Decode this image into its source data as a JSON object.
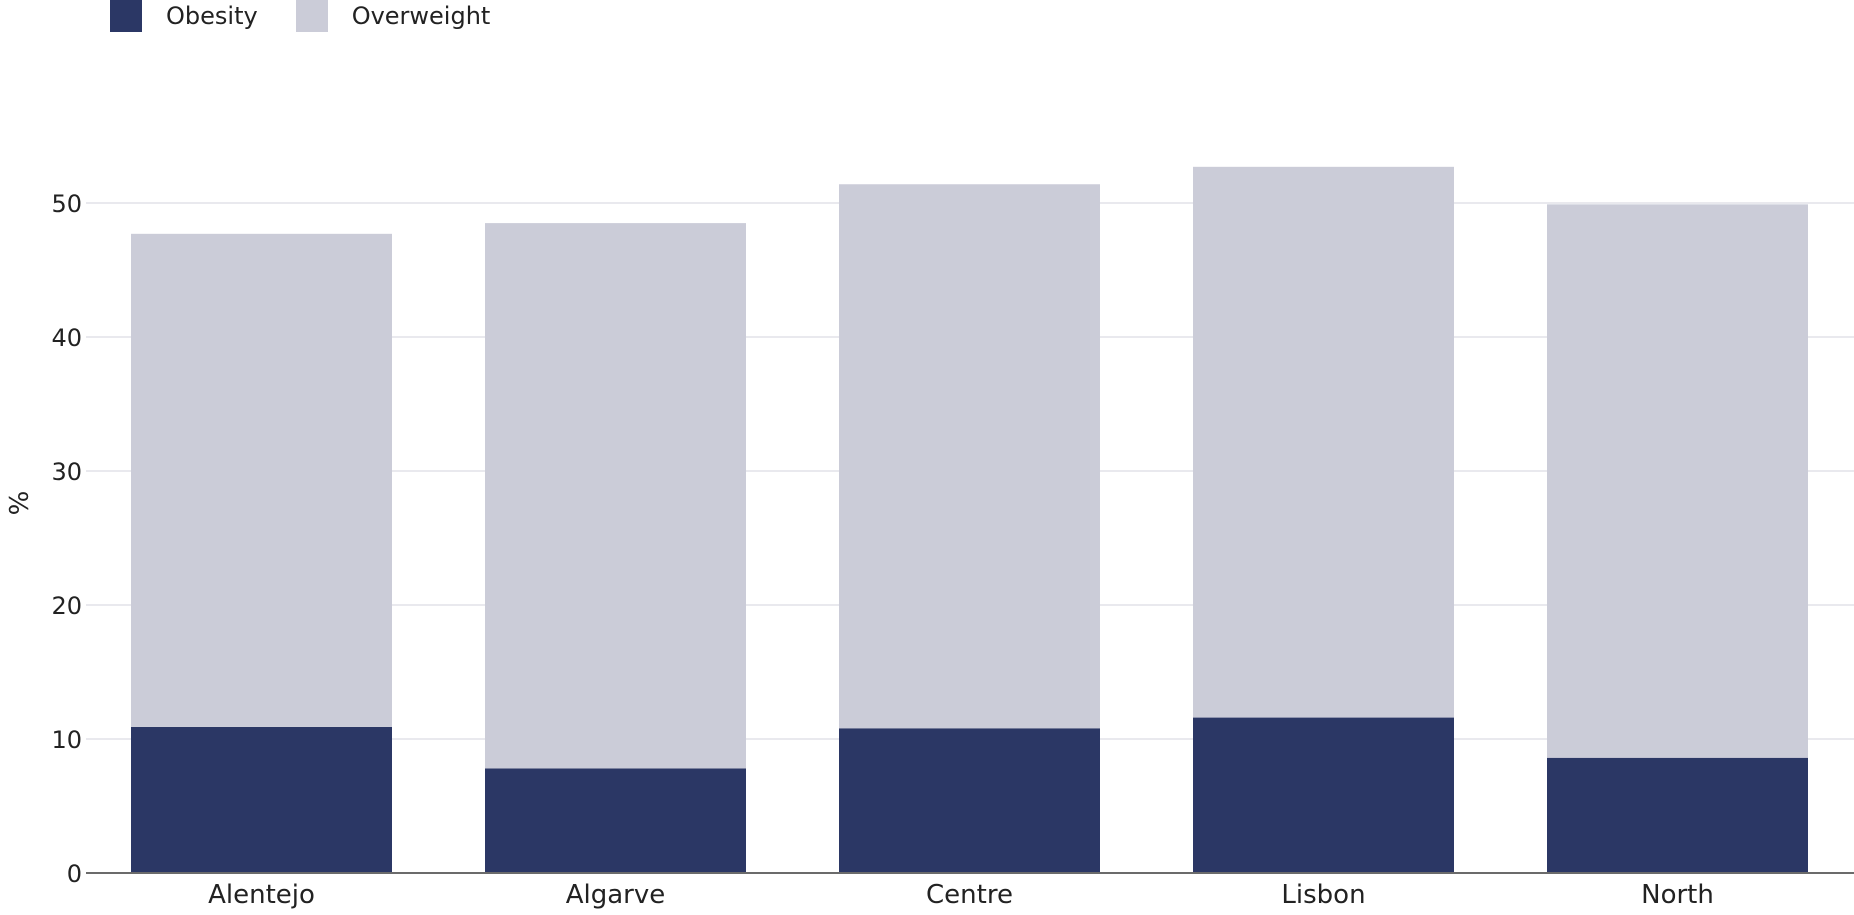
{
  "chart_data": {
    "type": "bar",
    "stacked": true,
    "title": "",
    "xlabel": "",
    "ylabel": "%",
    "ylim": [
      0,
      53
    ],
    "yticks": [
      0,
      10,
      20,
      30,
      40,
      50
    ],
    "grid": true,
    "legend_position": "top-left",
    "categories": [
      "Alentejo",
      "Algarve",
      "Centre",
      "Lisbon",
      "North"
    ],
    "series": [
      {
        "name": "Obesity",
        "color": "#2b3765",
        "values": [
          10.9,
          7.8,
          10.8,
          11.6,
          8.6
        ]
      },
      {
        "name": "Overweight",
        "color": "#cbccd8",
        "values": [
          36.8,
          40.7,
          40.6,
          41.1,
          41.3
        ]
      }
    ]
  }
}
